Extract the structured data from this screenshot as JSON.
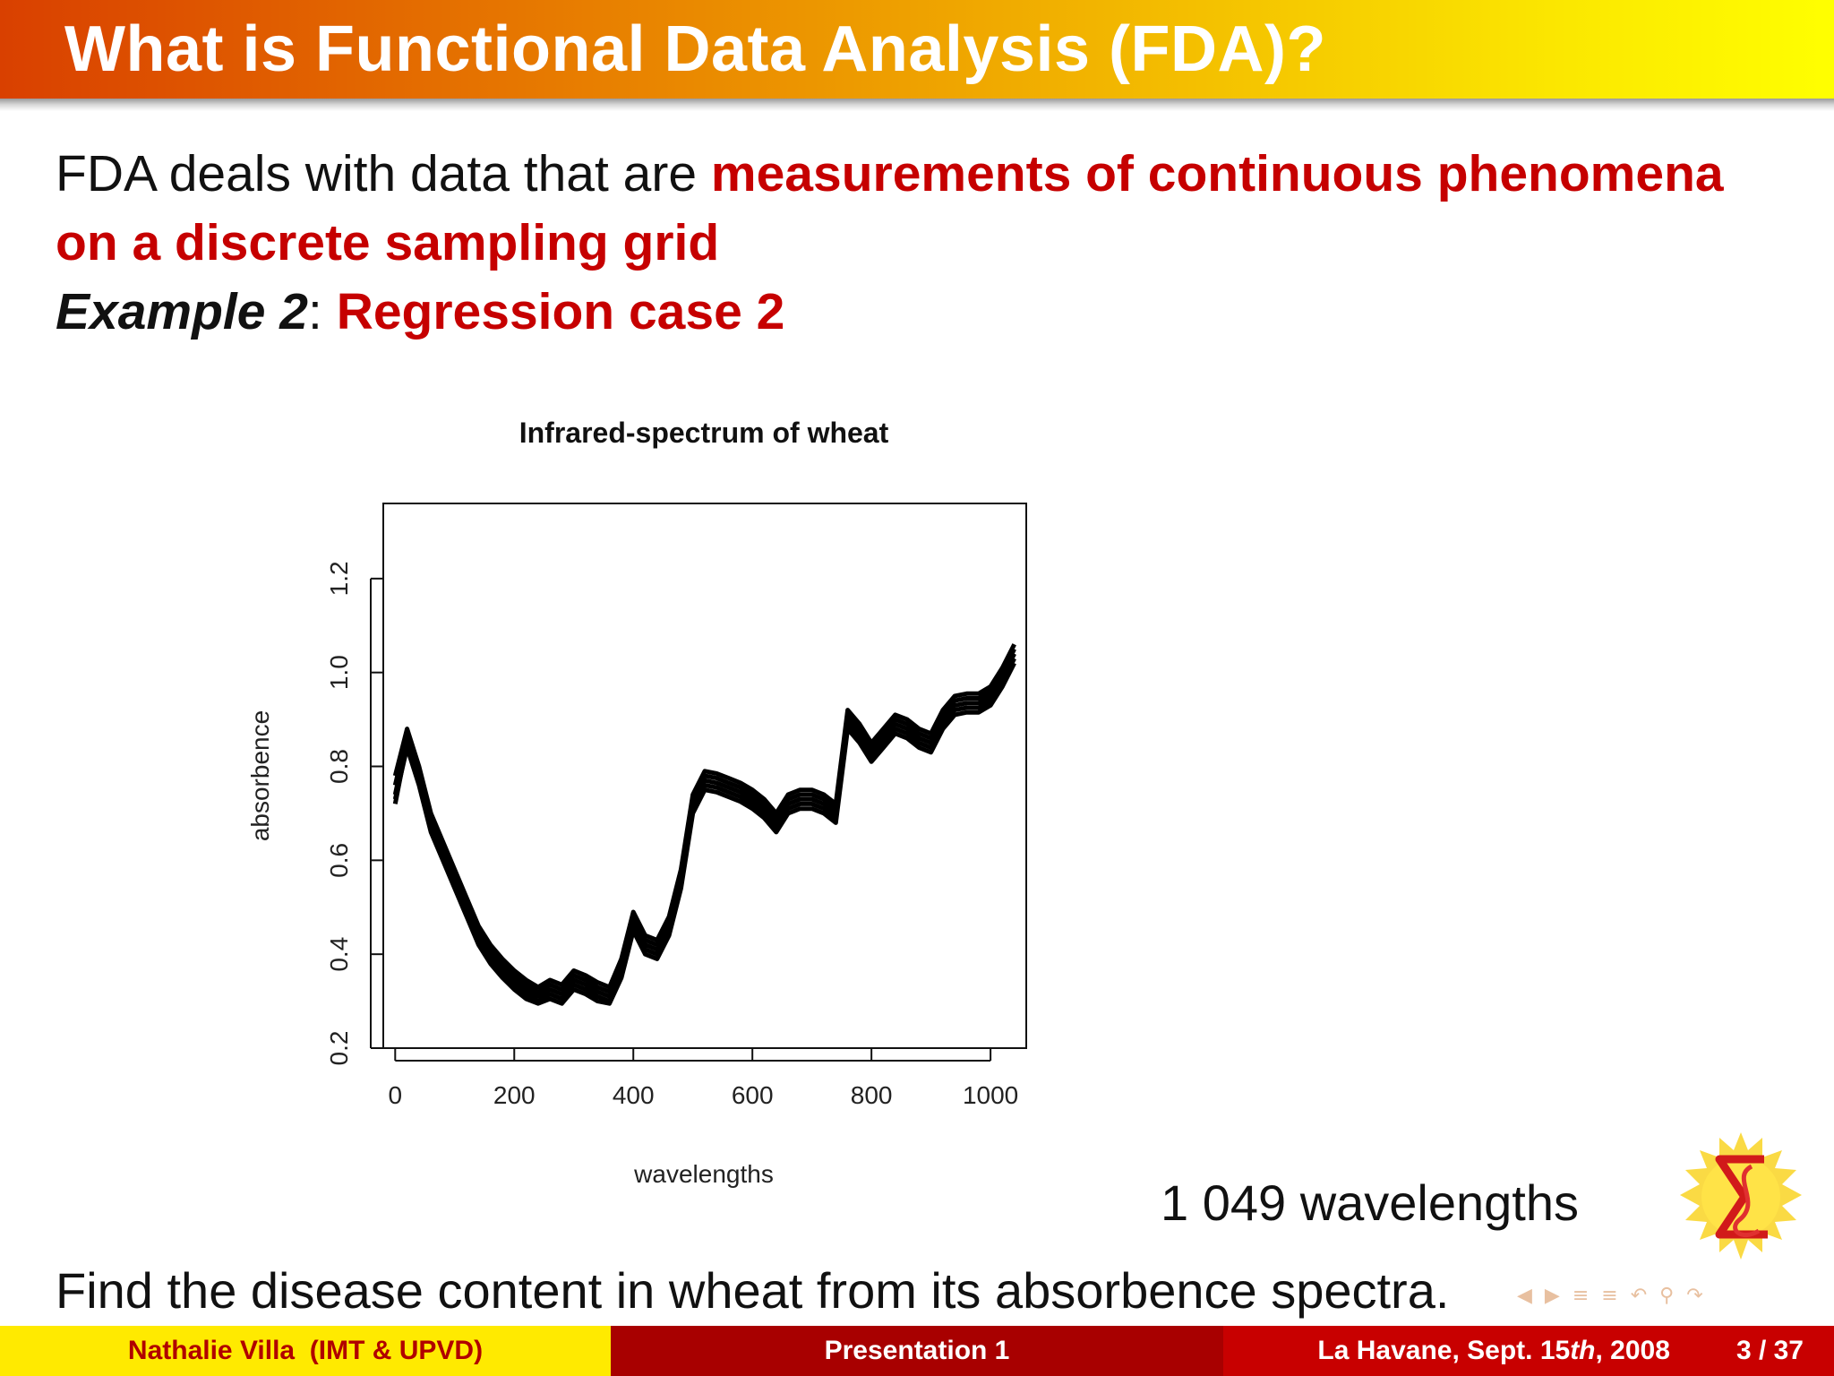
{
  "slide": {
    "title": "What is Functional Data Analysis (FDA)?",
    "line1_plain": "FDA deals with data that are ",
    "line1_red": "measurements of continuous phenomena",
    "line2_red": "on a discrete sampling grid",
    "example_label": "Example 2",
    "example_sep": ": ",
    "example_red": "Regression case 2",
    "note_right": "1 049 wavelengths",
    "bottom_text": "Find the disease content in wheat from its absorbence spectra."
  },
  "footer": {
    "author": "Nathalie Villa  (IMT & UPVD)",
    "title": "Presentation 1",
    "venue_prefix": "La Havane, Sept. 15",
    "venue_th": "th",
    "venue_suffix": ", 2008",
    "page": "3 / 37"
  },
  "nav_icons": [
    "nav-left-icon",
    "nav-right-icon",
    "nav-section-icon",
    "nav-subsection-icon",
    "nav-back-icon",
    "nav-search-icon",
    "nav-forward-icon"
  ],
  "colors": {
    "accent_red": "#c60000",
    "footer_yellow": "#ffea00",
    "footer_dark_red": "#a80000",
    "footer_red": "#c80000"
  },
  "chart_data": {
    "type": "line",
    "title": "Infrared-spectrum of wheat",
    "xlabel": "wavelengths",
    "ylabel": "absorbence",
    "xlim": [
      -20,
      1060
    ],
    "ylim": [
      0.2,
      1.36
    ],
    "xticks": [
      0,
      200,
      400,
      600,
      800,
      1000
    ],
    "yticks": [
      0.2,
      0.4,
      0.6,
      0.8,
      1.0,
      1.2
    ],
    "xtick_labels": [
      "0",
      "200",
      "400",
      "600",
      "800",
      "1000"
    ],
    "ytick_labels": [
      "0.2",
      "0.4",
      "0.6",
      "0.8",
      "1.0",
      "1.2"
    ],
    "grid": false,
    "x": [
      0,
      20,
      40,
      60,
      80,
      100,
      120,
      140,
      160,
      180,
      200,
      220,
      240,
      260,
      280,
      300,
      320,
      340,
      360,
      380,
      400,
      420,
      440,
      460,
      480,
      500,
      520,
      540,
      560,
      580,
      600,
      620,
      640,
      660,
      680,
      700,
      720,
      740,
      760,
      780,
      800,
      820,
      840,
      860,
      880,
      900,
      920,
      940,
      960,
      980,
      1000,
      1020,
      1040
    ],
    "series": [
      {
        "values": [
          0.74,
          0.86,
          0.78,
          0.68,
          0.62,
          0.56,
          0.5,
          0.44,
          0.4,
          0.37,
          0.345,
          0.325,
          0.31,
          0.325,
          0.315,
          0.345,
          0.335,
          0.32,
          0.31,
          0.37,
          0.47,
          0.42,
          0.41,
          0.46,
          0.56,
          0.72,
          0.77,
          0.765,
          0.755,
          0.745,
          0.73,
          0.71,
          0.68,
          0.72,
          0.73,
          0.73,
          0.72,
          0.7,
          0.9,
          0.87,
          0.83,
          0.86,
          0.89,
          0.88,
          0.86,
          0.85,
          0.9,
          0.93,
          0.935,
          0.935,
          0.95,
          0.99,
          1.04
        ]
      },
      {
        "values": [
          0.76,
          0.87,
          0.79,
          0.69,
          0.63,
          0.57,
          0.51,
          0.45,
          0.41,
          0.38,
          0.355,
          0.335,
          0.32,
          0.335,
          0.325,
          0.355,
          0.345,
          0.33,
          0.32,
          0.38,
          0.48,
          0.43,
          0.42,
          0.47,
          0.57,
          0.73,
          0.78,
          0.775,
          0.765,
          0.755,
          0.74,
          0.72,
          0.69,
          0.73,
          0.74,
          0.74,
          0.73,
          0.71,
          0.91,
          0.88,
          0.84,
          0.87,
          0.9,
          0.89,
          0.87,
          0.86,
          0.91,
          0.94,
          0.945,
          0.945,
          0.96,
          1.0,
          1.05
        ]
      },
      {
        "values": [
          0.72,
          0.85,
          0.77,
          0.67,
          0.61,
          0.55,
          0.49,
          0.43,
          0.39,
          0.36,
          0.335,
          0.315,
          0.3,
          0.315,
          0.305,
          0.335,
          0.325,
          0.31,
          0.3,
          0.36,
          0.46,
          0.41,
          0.4,
          0.45,
          0.55,
          0.71,
          0.76,
          0.755,
          0.745,
          0.735,
          0.72,
          0.7,
          0.67,
          0.71,
          0.72,
          0.72,
          0.71,
          0.69,
          0.89,
          0.86,
          0.82,
          0.85,
          0.88,
          0.87,
          0.85,
          0.84,
          0.89,
          0.92,
          0.925,
          0.925,
          0.94,
          0.98,
          1.03
        ]
      },
      {
        "values": [
          0.78,
          0.88,
          0.8,
          0.7,
          0.64,
          0.58,
          0.52,
          0.46,
          0.42,
          0.39,
          0.365,
          0.345,
          0.33,
          0.345,
          0.335,
          0.365,
          0.355,
          0.34,
          0.33,
          0.39,
          0.49,
          0.44,
          0.43,
          0.48,
          0.58,
          0.74,
          0.79,
          0.785,
          0.775,
          0.765,
          0.75,
          0.73,
          0.7,
          0.74,
          0.75,
          0.75,
          0.74,
          0.72,
          0.92,
          0.89,
          0.85,
          0.88,
          0.91,
          0.9,
          0.88,
          0.87,
          0.92,
          0.95,
          0.955,
          0.955,
          0.97,
          1.01,
          1.06
        ]
      },
      {
        "values": [
          0.73,
          0.84,
          0.76,
          0.66,
          0.6,
          0.54,
          0.48,
          0.42,
          0.38,
          0.35,
          0.325,
          0.305,
          0.295,
          0.305,
          0.295,
          0.325,
          0.315,
          0.3,
          0.295,
          0.35,
          0.45,
          0.4,
          0.39,
          0.44,
          0.54,
          0.7,
          0.75,
          0.745,
          0.735,
          0.725,
          0.71,
          0.69,
          0.66,
          0.7,
          0.71,
          0.71,
          0.7,
          0.68,
          0.88,
          0.85,
          0.81,
          0.84,
          0.87,
          0.86,
          0.84,
          0.83,
          0.88,
          0.91,
          0.915,
          0.915,
          0.93,
          0.97,
          1.02
        ]
      }
    ]
  }
}
